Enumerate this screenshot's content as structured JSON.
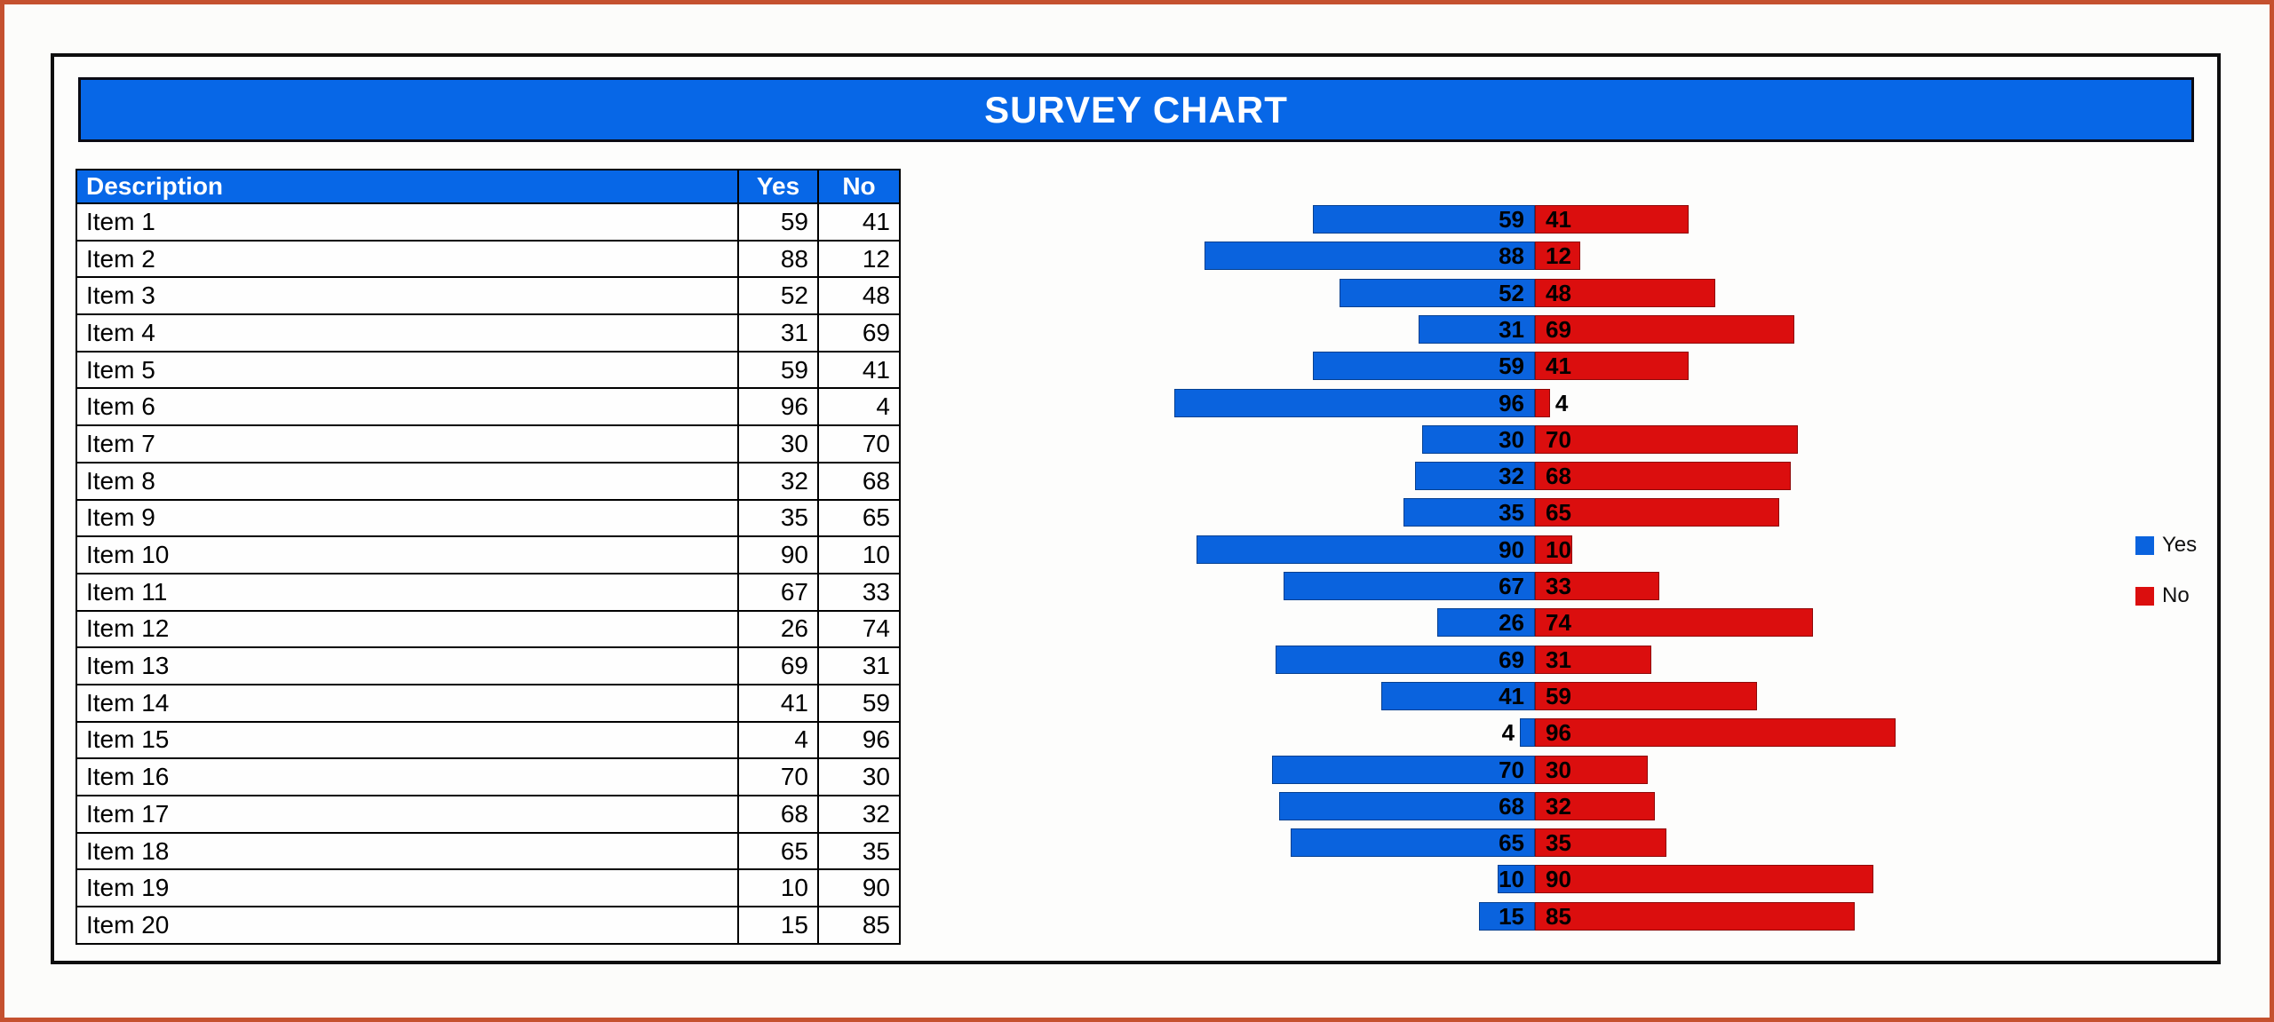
{
  "frame": {
    "outer_border_color": "#C5512F",
    "panel_border_color": "#0E0E0E",
    "background": "#FCFCFA"
  },
  "title": {
    "text": "SURVEY CHART",
    "bg_color": "#0767E7",
    "text_color": "#FFFFFF"
  },
  "table": {
    "headers": [
      "Description",
      "Yes",
      "No"
    ]
  },
  "legend": {
    "items": [
      {
        "label": "Yes",
        "color": "#0A63DE"
      },
      {
        "label": "No",
        "color": "#DB0E0E"
      }
    ]
  },
  "chart_data": {
    "type": "bar",
    "orientation": "horizontal-diverging",
    "title": "SURVEY CHART",
    "categories": [
      "Item 1",
      "Item 2",
      "Item 3",
      "Item 4",
      "Item 5",
      "Item 6",
      "Item 7",
      "Item 8",
      "Item 9",
      "Item 10",
      "Item 11",
      "Item 12",
      "Item 13",
      "Item 14",
      "Item 15",
      "Item 16",
      "Item 17",
      "Item 18",
      "Item 19",
      "Item 20"
    ],
    "series": [
      {
        "name": "Yes",
        "color": "#0A63DE",
        "direction": "left",
        "values": [
          59,
          88,
          52,
          31,
          59,
          96,
          30,
          32,
          35,
          90,
          67,
          26,
          69,
          41,
          4,
          70,
          68,
          65,
          10,
          15
        ]
      },
      {
        "name": "No",
        "color": "#DB0E0E",
        "direction": "right",
        "values": [
          41,
          12,
          48,
          69,
          41,
          4,
          70,
          68,
          65,
          10,
          33,
          74,
          31,
          59,
          96,
          30,
          32,
          35,
          90,
          85
        ]
      }
    ],
    "value_range_per_side": [
      0,
      100
    ],
    "grid": false,
    "axes_visible": false,
    "data_labels": "inside-base-bold-black",
    "legend_position": "right",
    "legend_labels": [
      "Yes",
      "No"
    ]
  }
}
